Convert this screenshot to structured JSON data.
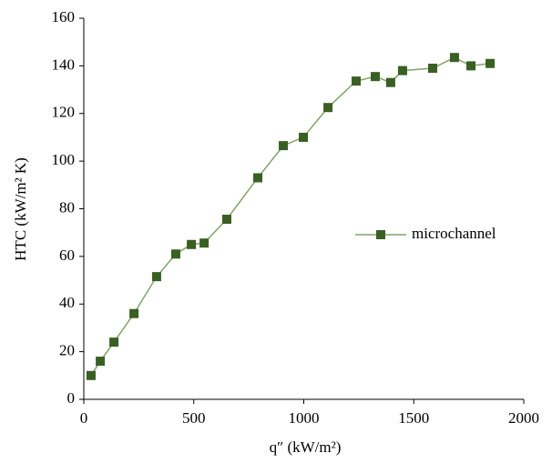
{
  "chart_data": {
    "type": "line",
    "x_label": "q″ (kW/m²)",
    "y_label": "HTC (kW/m² K)",
    "series": [
      {
        "name": "microchannel",
        "color": "#3a5f23",
        "line_color": "#84a06a",
        "x": [
          33,
          75,
          137,
          228,
          331,
          418,
          489,
          547,
          650,
          791,
          907,
          998,
          1110,
          1238,
          1325,
          1395,
          1449,
          1586,
          1685,
          1760,
          1847
        ],
        "values": [
          10,
          16,
          24,
          36,
          51.5,
          61,
          65,
          65.6,
          75.6,
          93,
          106.5,
          110,
          122.5,
          133.6,
          135.5,
          133,
          138,
          139,
          143.5,
          140,
          141
        ]
      }
    ],
    "xlim": [
      0,
      2000
    ],
    "xticks": [
      0,
      500,
      1000,
      1500,
      2000
    ],
    "ylim": [
      0,
      160
    ],
    "yticks": [
      0,
      20,
      40,
      60,
      80,
      100,
      120,
      140,
      160
    ],
    "grid": false,
    "legend": "right"
  }
}
